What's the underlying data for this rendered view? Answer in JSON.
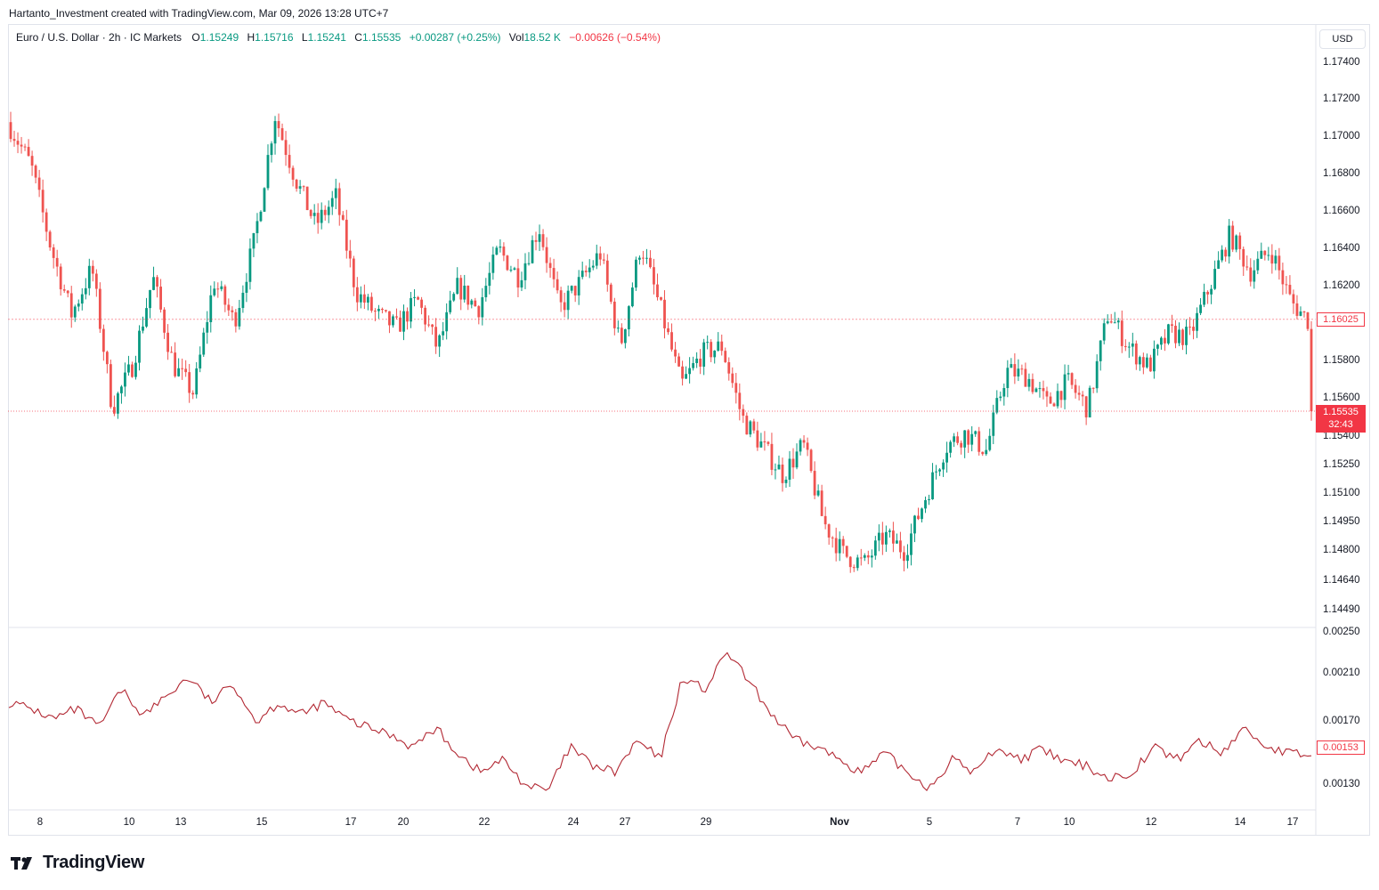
{
  "header": {
    "credit": "Hartanto_Investment created with TradingView.com, Mar 09, 2026 13:28 UTC+7"
  },
  "legend": {
    "symbol": "Euro / U.S. Dollar · 2h · IC Markets",
    "open_label": "O",
    "open": "1.15249",
    "high_label": "H",
    "high": "1.15716",
    "low_label": "L",
    "low": "1.15241",
    "close_label": "C",
    "close": "1.15535",
    "change": "+0.00287 (+0.25%)",
    "vol_label": "Vol",
    "vol": "18.52 K",
    "vol_change": "−0.00626 (−0.54%)"
  },
  "currency_button": "USD",
  "price_axis_labels": [
    "1.17400",
    "1.17200",
    "1.17000",
    "1.16800",
    "1.16600",
    "1.16400",
    "1.16200",
    "1.15800",
    "1.15600",
    "1.15400",
    "1.15250",
    "1.15100",
    "1.14950",
    "1.14800",
    "1.14640",
    "1.14490"
  ],
  "indicator_axis_labels": [
    "0.00250",
    "0.00210",
    "0.00170",
    "0.00130"
  ],
  "price_tags": {
    "last_price": "1.15535",
    "countdown": "32:43",
    "prev_level": "1.16025",
    "indicator_value": "0.00153"
  },
  "date_labels": [
    "8",
    "10",
    "13",
    "15",
    "17",
    "20",
    "22",
    "24",
    "27",
    "29",
    "Nov",
    "5",
    "7",
    "10",
    "12",
    "14",
    "17"
  ],
  "brand": {
    "name": "TradingView",
    "icon": "tradingview-logo-icon"
  },
  "colors": {
    "up": "#089981",
    "down": "#ef5350",
    "indicator": "#b22833",
    "tag": "#f23645"
  },
  "chart_data": [
    {
      "type": "candlestick",
      "title": "Euro / U.S. Dollar · 2h · IC Markets",
      "ylim": [
        1.1449,
        1.1745
      ],
      "x_tick_labels": [
        "8",
        "10",
        "13",
        "15",
        "17",
        "20",
        "22",
        "24",
        "27",
        "29",
        "Nov",
        "5",
        "7",
        "10",
        "12",
        "14",
        "17"
      ],
      "path": [
        1.1705,
        1.1685,
        1.164,
        1.1605,
        1.163,
        1.1555,
        1.1578,
        1.1625,
        1.1578,
        1.1563,
        1.1623,
        1.1601,
        1.1645,
        1.1712,
        1.1678,
        1.1653,
        1.1668,
        1.1617,
        1.1605,
        1.1598,
        1.1613,
        1.1587,
        1.162,
        1.1608,
        1.164,
        1.1625,
        1.1652,
        1.1608,
        1.1622,
        1.1638,
        1.1588,
        1.1643,
        1.1607,
        1.1567,
        1.1584,
        1.1588,
        1.155,
        1.1535,
        1.152,
        1.1536,
        1.1495,
        1.1478,
        1.1473,
        1.1488,
        1.148,
        1.1508,
        1.1535,
        1.1542,
        1.1533,
        1.1575,
        1.1572,
        1.1557,
        1.1569,
        1.1555,
        1.1606,
        1.1588,
        1.1577,
        1.1595,
        1.1593,
        1.162,
        1.1648,
        1.1628,
        1.164,
        1.1612,
        1.16
      ],
      "last_close": 1.15535,
      "reference_level": 1.16025
    },
    {
      "type": "line",
      "ylim": [
        0.0012,
        0.0026
      ],
      "path": [
        0.00195,
        0.0019,
        0.00182,
        0.0019,
        0.00175,
        0.00205,
        0.00185,
        0.002,
        0.00215,
        0.00195,
        0.0021,
        0.0018,
        0.00195,
        0.00185,
        0.00195,
        0.00182,
        0.00175,
        0.0017,
        0.0016,
        0.00175,
        0.00155,
        0.0014,
        0.0015,
        0.0013,
        0.00125,
        0.0016,
        0.00145,
        0.0014,
        0.00165,
        0.0015,
        0.00215,
        0.00205,
        0.00235,
        0.0021,
        0.00185,
        0.00165,
        0.0016,
        0.0015,
        0.0014,
        0.00155,
        0.0014,
        0.00128,
        0.0015,
        0.0014,
        0.0016,
        0.0015,
        0.00158,
        0.00148,
        0.00145,
        0.00135,
        0.0014,
        0.0016,
        0.0015,
        0.00165,
        0.00155,
        0.00175,
        0.0016,
        0.00155,
        0.00153
      ],
      "last_value": 0.00153
    }
  ]
}
